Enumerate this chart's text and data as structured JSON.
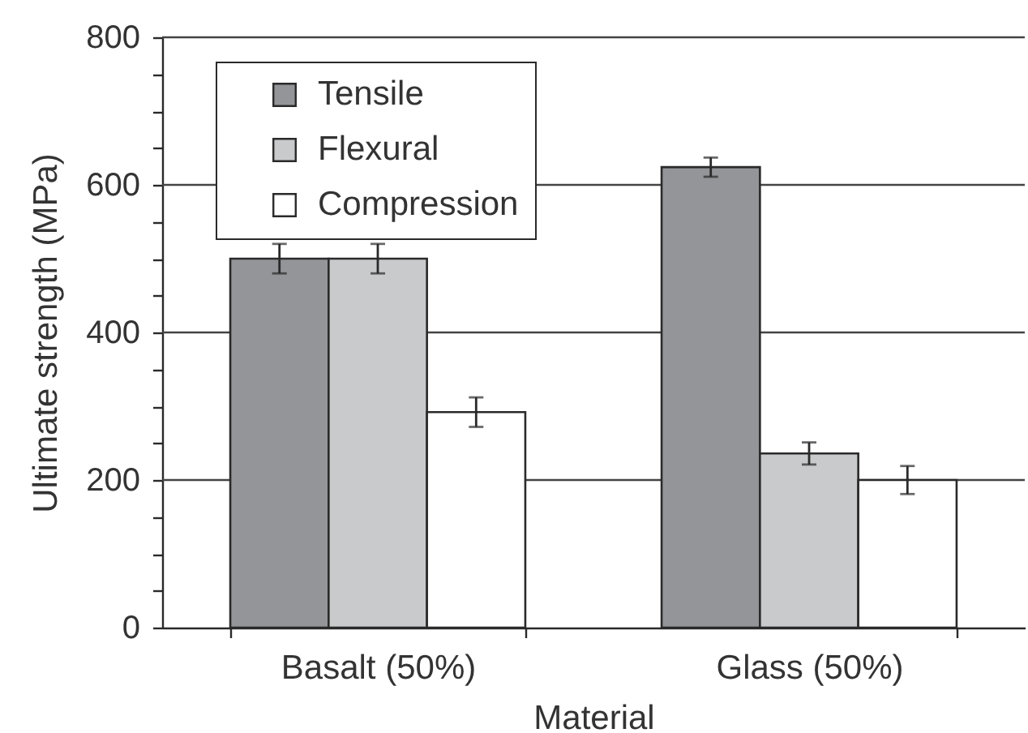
{
  "chart_data": {
    "type": "bar",
    "xlabel": "Material",
    "ylabel": "Ultimate strength (MPa)",
    "categories": [
      "Basalt (50%)",
      "Glass (50%)"
    ],
    "series": [
      {
        "name": "Tensile",
        "color": "#939598",
        "values": [
          500,
          624
        ],
        "errors": [
          20,
          13
        ]
      },
      {
        "name": "Flexural",
        "color": "#c8cacc",
        "values": [
          500,
          236
        ],
        "errors": [
          20,
          15
        ]
      },
      {
        "name": "Compression",
        "color": "#ffffff",
        "values": [
          292,
          200
        ],
        "errors": [
          20,
          19
        ]
      }
    ],
    "ylim": [
      0,
      800
    ],
    "yticks": [
      0,
      {
        "value": 50,
        "label": null
      },
      {
        "value": 100,
        "label": null
      },
      {
        "value": 150,
        "label": null
      },
      200,
      {
        "value": 250,
        "label": null
      },
      {
        "value": 300,
        "label": null
      },
      {
        "value": 350,
        "label": null
      },
      400,
      {
        "value": 450,
        "label": null
      },
      {
        "value": 500,
        "label": null
      },
      {
        "value": 550,
        "label": null
      },
      600,
      {
        "value": 650,
        "label": null
      },
      {
        "value": 700,
        "label": null
      },
      {
        "value": 750,
        "label": null
      },
      800
    ],
    "grid": "y",
    "legend": "top left"
  }
}
